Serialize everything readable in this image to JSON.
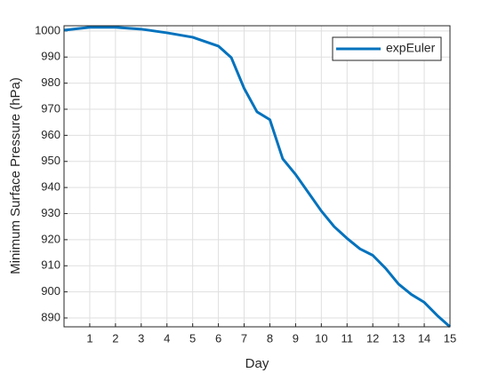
{
  "chart_data": {
    "type": "line",
    "xlabel": "Day",
    "ylabel": "Minimum Surface Pressure (hPa)",
    "x": [
      0,
      1,
      2,
      3,
      4,
      5,
      6,
      6.5,
      7,
      7.5,
      8,
      8.5,
      9,
      9.5,
      10,
      10.5,
      11,
      11.5,
      12,
      12.5,
      13,
      13.5,
      14,
      14.5,
      15
    ],
    "series": [
      {
        "name": "expEuler",
        "color": "#0072bd",
        "values": [
          1000.3,
          1001.4,
          1001.4,
          1000.7,
          999.3,
          997.6,
          994.2,
          989.8,
          978,
          969,
          966,
          951,
          945,
          938,
          931,
          925,
          920.5,
          916.5,
          914,
          909,
          903,
          899,
          896,
          891,
          886.6
        ]
      }
    ],
    "xlim": [
      0,
      15
    ],
    "xticks": [
      1,
      2,
      3,
      4,
      5,
      6,
      7,
      8,
      9,
      10,
      11,
      12,
      13,
      14,
      15
    ],
    "ylim": [
      886.6,
      1002
    ],
    "yticks": [
      890,
      900,
      910,
      920,
      930,
      940,
      950,
      960,
      970,
      980,
      990,
      1000
    ],
    "grid": true,
    "legend": "top-right"
  }
}
